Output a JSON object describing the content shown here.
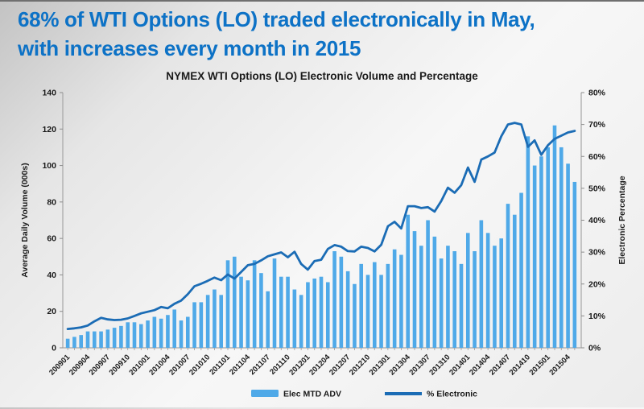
{
  "page": {
    "title_line1": "68% of WTI Options (LO) traded electronically in May,",
    "title_line2": "with increases every month in 2015"
  },
  "colors": {
    "headline_blue": "#0d72c6",
    "bar_blue": "#4fa9e8",
    "line_blue": "#1b6cb5",
    "axis_line_gray": "#a6a6a6",
    "text_dark": "#1a1a1a"
  },
  "chart_data": {
    "type": "bar",
    "combo": "bar+line",
    "title": "NYMEX WTI Options (LO) Electronic Volume and Percentage",
    "grid": false,
    "legend_position": "bottom",
    "categories": [
      "200901",
      "200902",
      "200903",
      "200904",
      "200905",
      "200906",
      "200907",
      "200908",
      "200909",
      "200910",
      "200911",
      "200912",
      "201001",
      "201002",
      "201003",
      "201004",
      "201005",
      "201006",
      "201007",
      "201008",
      "201009",
      "201010",
      "201011",
      "201012",
      "201101",
      "201102",
      "201103",
      "201104",
      "201105",
      "201106",
      "201107",
      "201108",
      "201109",
      "201110",
      "201111",
      "201112",
      "201201",
      "201202",
      "201203",
      "201204",
      "201205",
      "201206",
      "201207",
      "201208",
      "201209",
      "201210",
      "201211",
      "201212",
      "201301",
      "201302",
      "201303",
      "201304",
      "201305",
      "201306",
      "201307",
      "201308",
      "201309",
      "201310",
      "201311",
      "201312",
      "201401",
      "201402",
      "201403",
      "201404",
      "201405",
      "201406",
      "201407",
      "201408",
      "201409",
      "201410",
      "201411",
      "201412",
      "201501",
      "201502",
      "201503",
      "201504",
      "201505"
    ],
    "x_tick_every": 3,
    "series": [
      {
        "name": "Elec MTD ADV",
        "type": "bar",
        "axis": "left",
        "color": "#4fa9e8",
        "values": [
          5,
          6,
          7,
          9,
          9,
          9,
          10,
          11,
          12,
          14,
          14,
          13,
          15,
          17,
          16,
          18,
          21,
          15,
          17,
          25,
          25,
          29,
          32,
          29,
          48,
          50,
          39,
          37,
          48,
          41,
          31,
          49,
          39,
          39,
          32,
          29,
          36,
          38,
          39,
          36,
          53,
          50,
          42,
          35,
          46,
          40,
          47,
          40,
          46,
          54,
          51,
          73,
          64,
          56,
          70,
          61,
          49,
          56,
          53,
          46,
          63,
          53,
          70,
          63,
          56,
          60,
          79,
          73,
          85,
          116,
          100,
          105,
          110,
          122,
          110,
          101,
          91
        ]
      },
      {
        "name": "% Electronic",
        "type": "line",
        "axis": "right",
        "color": "#1b6cb5",
        "values": [
          5.9,
          6.1,
          6.4,
          7.0,
          8.3,
          9.4,
          8.9,
          8.7,
          8.8,
          9.2,
          10.0,
          10.8,
          11.3,
          11.8,
          12.8,
          12.4,
          13.8,
          14.8,
          16.8,
          19.3,
          20.1,
          21.0,
          22.0,
          21.2,
          23.0,
          21.7,
          23.8,
          25.9,
          26.3,
          27.4,
          28.7,
          29.3,
          29.9,
          28.4,
          30.1,
          26.3,
          24.5,
          27.2,
          27.6,
          31.0,
          32.2,
          31.7,
          30.3,
          30.2,
          31.7,
          31.3,
          30.2,
          32.3,
          38.1,
          39.5,
          37.4,
          44.4,
          44.4,
          43.8,
          44.1,
          42.7,
          46.0,
          50.2,
          48.6,
          51.0,
          56.5,
          52.0,
          59.0,
          60.0,
          61.2,
          66.3,
          70.0,
          70.5,
          70.0,
          63.0,
          65.0,
          60.5,
          63.5,
          65.5,
          66.5,
          67.5,
          68.0
        ]
      }
    ],
    "left_axis": {
      "title": "Average Daily Volume (000s)",
      "min": 0,
      "max": 140,
      "step": 20,
      "tick_labels": [
        "0",
        "20",
        "40",
        "60",
        "80",
        "100",
        "120",
        "140"
      ]
    },
    "right_axis": {
      "title": "Electronic Percentage",
      "min": 0,
      "max": 80,
      "step": 10,
      "tick_labels": [
        "0%",
        "10%",
        "20%",
        "30%",
        "40%",
        "50%",
        "60%",
        "70%",
        "80%"
      ]
    },
    "legend": [
      {
        "label": "Elec MTD ADV",
        "swatch": "bar"
      },
      {
        "label": "% Electronic",
        "swatch": "line"
      }
    ]
  }
}
